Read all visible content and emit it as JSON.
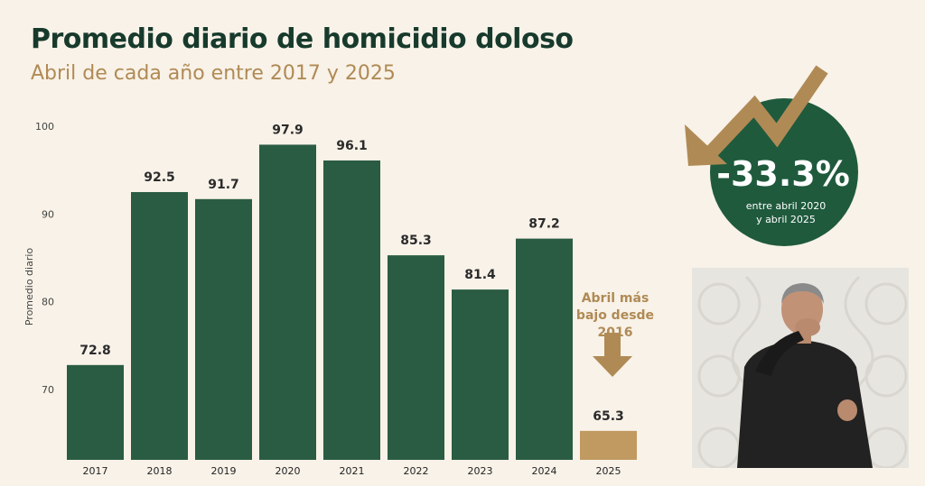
{
  "header": {
    "title": "Promedio diario de homicidio doloso",
    "subtitle": "Abril de cada año entre 2017 y 2025"
  },
  "chart_data": {
    "type": "bar",
    "title": "Promedio diario de homicidio doloso",
    "subtitle": "Abril de cada año entre 2017 y 2025",
    "xlabel": "",
    "ylabel": "Promedio diario",
    "categories": [
      "2017",
      "2018",
      "2019",
      "2020",
      "2021",
      "2022",
      "2023",
      "2024",
      "2025"
    ],
    "values": [
      72.8,
      92.5,
      91.7,
      97.9,
      96.1,
      85.3,
      81.4,
      87.2,
      65.3
    ],
    "yticks": [
      70,
      80,
      90,
      100
    ],
    "ylim": [
      62,
      100
    ],
    "grid": false,
    "colors": {
      "bar": "#2a5c43",
      "highlight": "#c19a62"
    },
    "highlight_index": 8
  },
  "annotation": {
    "note": "Abril más bajo desde 2016"
  },
  "badge": {
    "percent": "-33.3%",
    "line1": "entre abril 2020",
    "line2": "y abril 2025",
    "arrow_icon": "trend-down-arrow-icon"
  },
  "colors": {
    "background": "#f8f2e8",
    "title": "#173a2c",
    "accent_gold": "#b08a55",
    "badge_green": "#1f5a3d"
  }
}
